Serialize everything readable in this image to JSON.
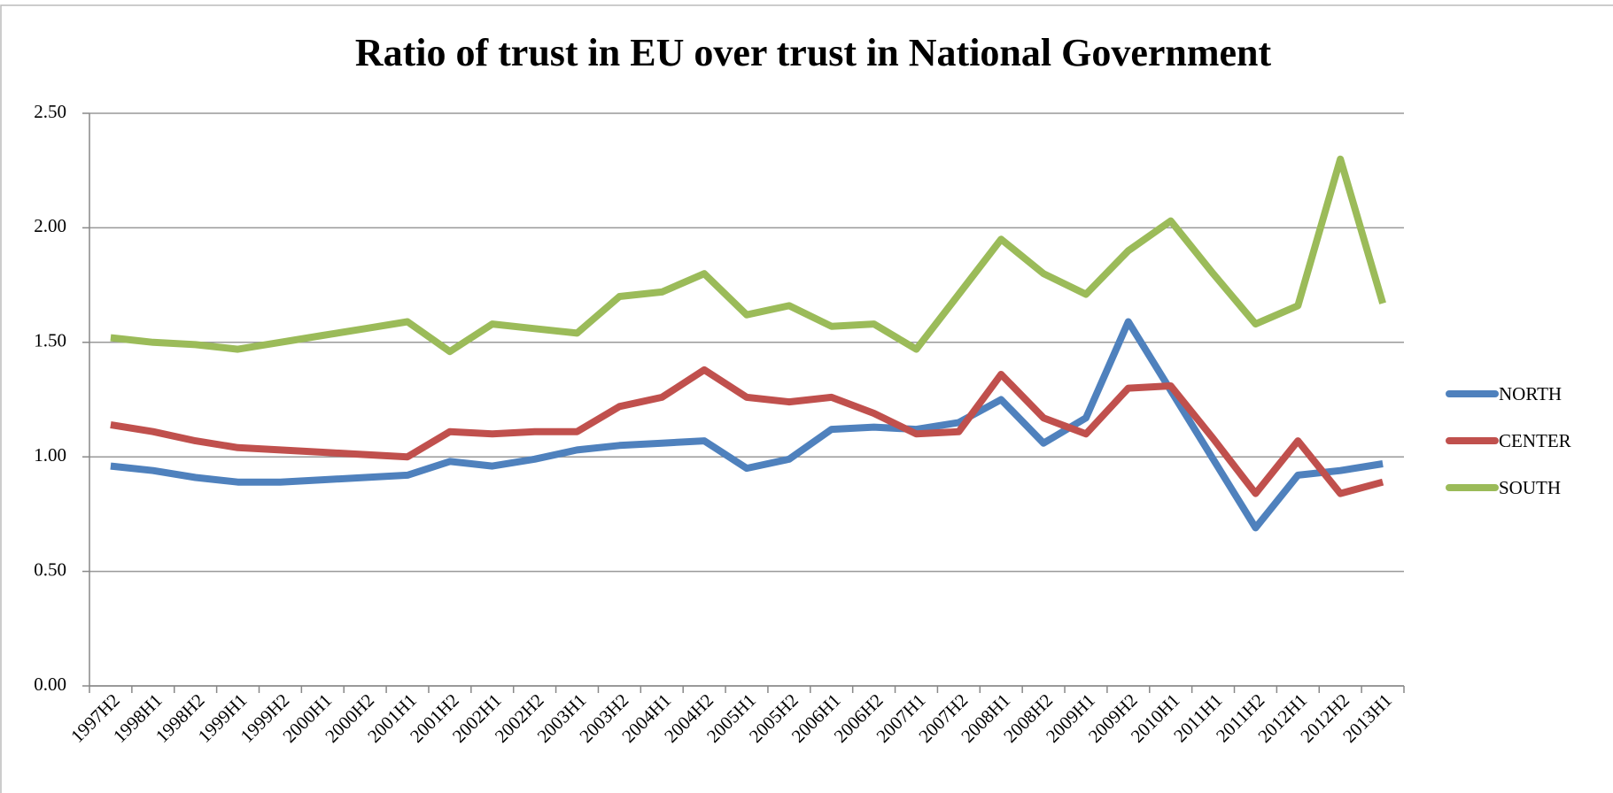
{
  "chart_data": {
    "type": "line",
    "title": "Ratio of trust in EU over trust in National Government",
    "categories": [
      "1997H2",
      "1998H1",
      "1998H2",
      "1999H1",
      "1999H2",
      "2000H1",
      "2000H2",
      "2001H1",
      "2001H2",
      "2002H1",
      "2002H2",
      "2003H1",
      "2003H2",
      "2004H1",
      "2004H2",
      "2005H1",
      "2005H2",
      "2006H1",
      "2006H2",
      "2007H1",
      "2007H2",
      "2008H1",
      "2008H2",
      "2009H1",
      "2009H2",
      "2010H1",
      "2011H1",
      "2011H2",
      "2012H1",
      "2012H2",
      "2013H1"
    ],
    "series": [
      {
        "name": "NORTH",
        "color": "#4f81bd",
        "values": [
          0.96,
          0.94,
          0.91,
          0.89,
          0.89,
          0.9,
          0.91,
          0.92,
          0.98,
          0.96,
          0.99,
          1.03,
          1.05,
          1.06,
          1.07,
          0.95,
          0.99,
          1.12,
          1.13,
          1.12,
          1.15,
          1.25,
          1.06,
          1.17,
          1.59,
          1.29,
          0.99,
          0.69,
          0.92,
          0.94,
          0.97
        ]
      },
      {
        "name": "CENTER",
        "color": "#c0504d",
        "values": [
          1.14,
          1.11,
          1.07,
          1.04,
          1.03,
          1.02,
          1.01,
          1.0,
          1.11,
          1.1,
          1.11,
          1.11,
          1.22,
          1.26,
          1.38,
          1.26,
          1.24,
          1.26,
          1.19,
          1.1,
          1.11,
          1.36,
          1.17,
          1.1,
          1.3,
          1.31,
          1.08,
          0.84,
          1.07,
          0.84,
          0.89
        ]
      },
      {
        "name": "SOUTH",
        "color": "#9bbb59",
        "values": [
          1.52,
          1.5,
          1.49,
          1.47,
          1.5,
          1.53,
          1.56,
          1.59,
          1.46,
          1.58,
          1.56,
          1.54,
          1.7,
          1.72,
          1.8,
          1.62,
          1.66,
          1.57,
          1.58,
          1.47,
          1.71,
          1.95,
          1.8,
          1.71,
          1.9,
          2.03,
          1.8,
          1.58,
          1.66,
          2.3,
          1.67
        ]
      }
    ],
    "ylim": [
      0,
      2.5
    ],
    "yticks": [
      {
        "value": 0,
        "label": "0.00"
      },
      {
        "value": 0.5,
        "label": "0.50"
      },
      {
        "value": 1,
        "label": "1.00"
      },
      {
        "value": 1.5,
        "label": "1.50"
      },
      {
        "value": 2,
        "label": "2.00"
      },
      {
        "value": 2.5,
        "label": "2.50"
      }
    ],
    "grid": true,
    "legend": "right"
  }
}
